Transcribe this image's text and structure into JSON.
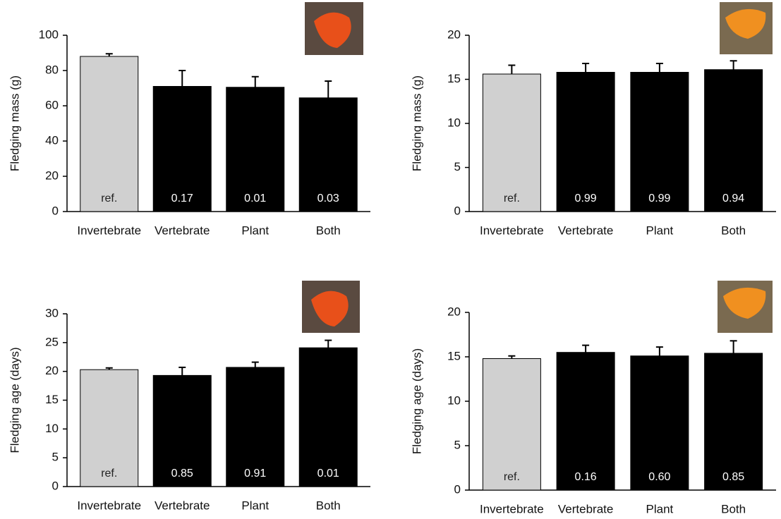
{
  "chart_data": [
    {
      "type": "bar",
      "ylabel": "Fledging mass (g)",
      "categories": [
        "Invertebrate",
        "Vertebrate",
        "Plant",
        "Both"
      ],
      "values": [
        88,
        71,
        70.5,
        64.5
      ],
      "errors": [
        1.5,
        9,
        6,
        9.5
      ],
      "annotations": [
        "ref.",
        "0.17",
        "0.01",
        "0.03"
      ],
      "colors": [
        "#d0d0d0",
        "#000000",
        "#000000",
        "#000000"
      ],
      "ylim": [
        0,
        100
      ],
      "yticks": [
        0,
        20,
        40,
        60,
        80,
        100
      ]
    },
    {
      "type": "bar",
      "ylabel": "Fledging mass (g)",
      "categories": [
        "Invertebrate",
        "Vertebrate",
        "Plant",
        "Both"
      ],
      "values": [
        15.6,
        15.8,
        15.8,
        16.1
      ],
      "errors": [
        1,
        1,
        1,
        1
      ],
      "annotations": [
        "ref.",
        "0.99",
        "0.99",
        "0.94"
      ],
      "colors": [
        "#d0d0d0",
        "#000000",
        "#000000",
        "#000000"
      ],
      "ylim": [
        0,
        20
      ],
      "yticks": [
        0,
        5,
        10,
        15,
        20
      ]
    },
    {
      "type": "bar",
      "ylabel": "Fledging age (days)",
      "categories": [
        "Invertebrate",
        "Vertebrate",
        "Plant",
        "Both"
      ],
      "values": [
        20.3,
        19.3,
        20.7,
        24.1
      ],
      "errors": [
        0.3,
        1.4,
        0.9,
        1.3
      ],
      "annotations": [
        "ref.",
        "0.85",
        "0.91",
        "0.01"
      ],
      "colors": [
        "#d0d0d0",
        "#000000",
        "#000000",
        "#000000"
      ],
      "ylim": [
        0,
        30
      ],
      "yticks": [
        0,
        5,
        10,
        15,
        20,
        25,
        30
      ]
    },
    {
      "type": "bar",
      "ylabel": "Fledging age (days)",
      "categories": [
        "Invertebrate",
        "Vertebrate",
        "Plant",
        "Both"
      ],
      "values": [
        14.8,
        15.5,
        15.1,
        15.4
      ],
      "errors": [
        0.3,
        0.8,
        1,
        1.4
      ],
      "annotations": [
        "ref.",
        "0.16",
        "0.60",
        "0.85"
      ],
      "colors": [
        "#d0d0d0",
        "#000000",
        "#000000",
        "#000000"
      ],
      "ylim": [
        0,
        20
      ],
      "yticks": [
        0,
        5,
        10,
        15,
        20
      ]
    }
  ]
}
